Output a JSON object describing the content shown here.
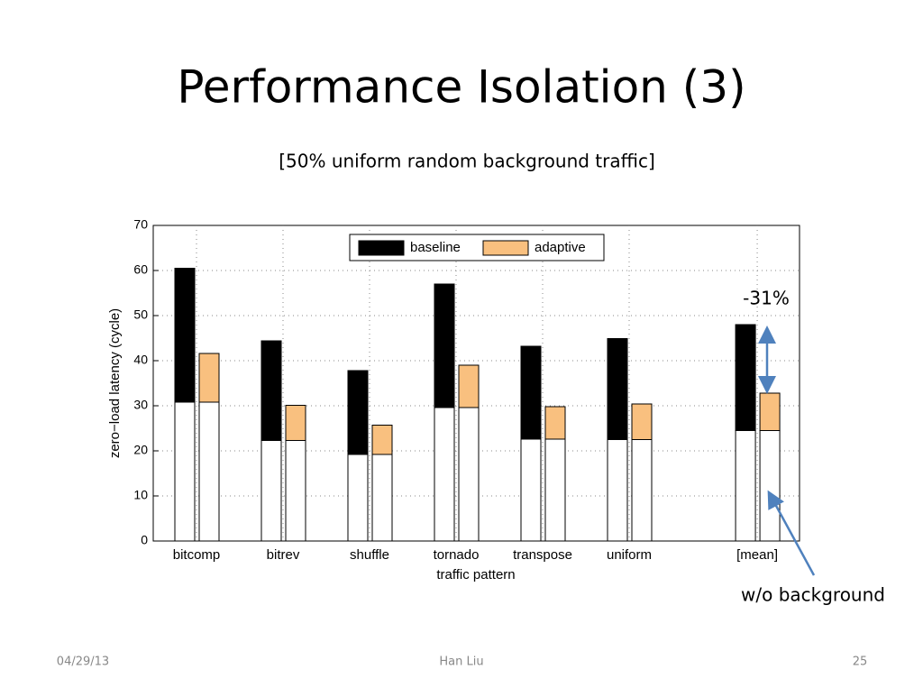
{
  "title": "Performance Isolation (3)",
  "subtitle": "[50% uniform random background traffic]",
  "footer": {
    "date": "04/29/13",
    "author": "Han Liu",
    "page": "25"
  },
  "chart_data": {
    "type": "stacked_bar",
    "categories": [
      "bitcomp",
      "bitrev",
      "shuffle",
      "tornado",
      "transpose",
      "uniform",
      "[mean]"
    ],
    "xlabel": "traffic pattern",
    "ylabel": "zero−load latency (cycle)",
    "ylim": [
      0,
      70
    ],
    "yticks": [
      0,
      10,
      20,
      30,
      40,
      50,
      60,
      70
    ],
    "grid": true,
    "legend": "upper center",
    "series": [
      {
        "name": "baseline",
        "color": "#000000",
        "bottom_color": "#ffffff",
        "bottom_values": [
          30.8,
          22.3,
          19.2,
          29.6,
          22.6,
          22.5,
          24.5
        ],
        "values": [
          29.7,
          22.1,
          18.6,
          27.4,
          20.6,
          22.4,
          23.5
        ]
      },
      {
        "name": "adaptive",
        "color": "#f9c07f",
        "bottom_color": "#ffffff",
        "bottom_values": [
          30.8,
          22.3,
          19.2,
          29.6,
          22.6,
          22.5,
          24.5
        ],
        "values": [
          10.8,
          7.8,
          6.5,
          9.4,
          7.2,
          7.9,
          8.3
        ]
      }
    ],
    "annotations": [
      "-31%",
      "w/o background"
    ]
  }
}
